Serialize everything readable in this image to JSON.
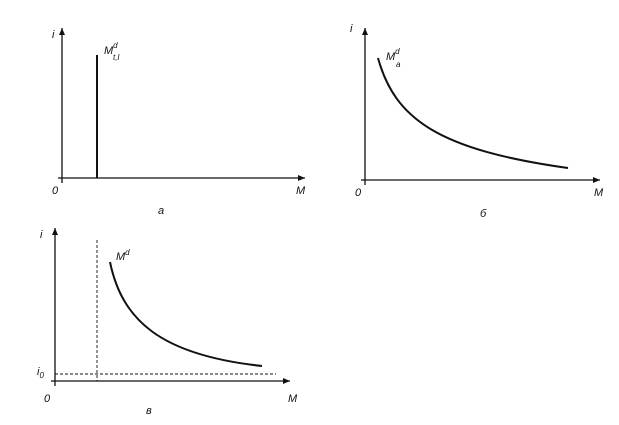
{
  "panels": [
    {
      "y_label": "i",
      "x_label": "M",
      "origin": "0",
      "curve_label": {
        "base": "M",
        "sup": "d",
        "sub": "t,l"
      },
      "caption": "а"
    },
    {
      "y_label": "i",
      "x_label": "M",
      "origin": "0",
      "curve_label": {
        "base": "M",
        "sup": "d",
        "sub": "a"
      },
      "caption": "б"
    },
    {
      "y_label": "i",
      "x_label": "M",
      "origin": "0",
      "curve_label": {
        "base": "M",
        "sup": "d"
      },
      "floor_label": {
        "base": "i",
        "sub": "0"
      },
      "caption": "в"
    }
  ]
}
